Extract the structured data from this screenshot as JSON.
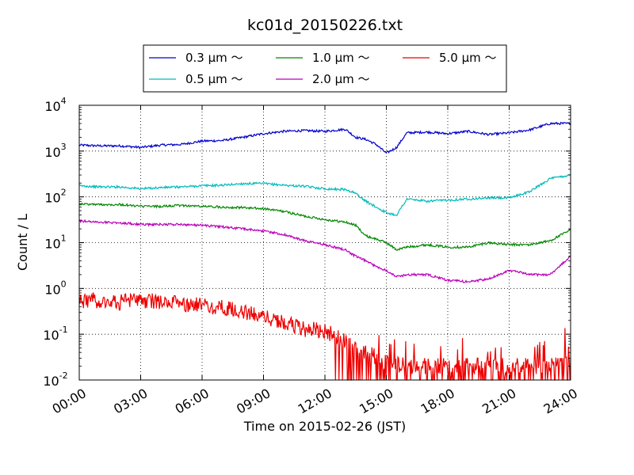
{
  "chart_data": {
    "type": "line",
    "title": "kc01d_20150226.txt",
    "xlabel": "Time on 2015-02-26 (JST)",
    "ylabel": "Count / L",
    "yscale": "log",
    "ylim": [
      0.01,
      10000
    ],
    "xlim": [
      "00:00",
      "24:00"
    ],
    "grid": true,
    "legend_position": "top-center",
    "x_ticks": [
      "00:00",
      "03:00",
      "06:00",
      "09:00",
      "12:00",
      "15:00",
      "18:00",
      "21:00",
      "24:00"
    ],
    "y_ticks": [
      {
        "base": "10",
        "exp": "-2"
      },
      {
        "base": "10",
        "exp": "-1"
      },
      {
        "base": "10",
        "exp": "0"
      },
      {
        "base": "10",
        "exp": "1"
      },
      {
        "base": "10",
        "exp": "2"
      },
      {
        "base": "10",
        "exp": "3"
      },
      {
        "base": "10",
        "exp": "4"
      }
    ],
    "series": [
      {
        "name": "0.3 μm ～",
        "color": "#0000cc",
        "x": [
          "00:00",
          "01:00",
          "02:00",
          "03:00",
          "04:00",
          "05:00",
          "06:00",
          "07:00",
          "08:00",
          "09:00",
          "10:00",
          "11:00",
          "12:00",
          "13:00",
          "13:30",
          "14:00",
          "14:30",
          "15:00",
          "15:30",
          "16:00",
          "17:00",
          "18:00",
          "19:00",
          "20:00",
          "21:00",
          "22:00",
          "23:00",
          "24:00"
        ],
        "y": [
          1350,
          1300,
          1300,
          1200,
          1350,
          1400,
          1650,
          1700,
          2000,
          2400,
          2700,
          2800,
          2700,
          3000,
          2000,
          1800,
          1400,
          900,
          1200,
          2500,
          2600,
          2400,
          2700,
          2300,
          2500,
          2900,
          4000,
          4000
        ]
      },
      {
        "name": "0.5 μm ～",
        "color": "#00bbbb",
        "x": [
          "00:00",
          "01:00",
          "02:00",
          "03:00",
          "04:00",
          "05:00",
          "06:00",
          "07:00",
          "08:00",
          "09:00",
          "10:00",
          "11:00",
          "12:00",
          "13:00",
          "13:30",
          "14:00",
          "14:30",
          "15:00",
          "15:30",
          "16:00",
          "17:00",
          "18:00",
          "19:00",
          "20:00",
          "21:00",
          "22:00",
          "23:00",
          "24:00"
        ],
        "y": [
          175,
          165,
          165,
          150,
          160,
          165,
          175,
          180,
          195,
          195,
          180,
          170,
          150,
          145,
          120,
          80,
          60,
          45,
          40,
          90,
          80,
          85,
          90,
          95,
          95,
          130,
          250,
          300
        ]
      },
      {
        "name": "1.0 μm ～",
        "color": "#008800",
        "x": [
          "00:00",
          "01:00",
          "02:00",
          "03:00",
          "04:00",
          "05:00",
          "06:00",
          "07:00",
          "08:00",
          "09:00",
          "10:00",
          "11:00",
          "12:00",
          "13:00",
          "13:30",
          "14:00",
          "14:30",
          "15:00",
          "15:30",
          "16:00",
          "17:00",
          "18:00",
          "19:00",
          "20:00",
          "21:00",
          "22:00",
          "23:00",
          "24:00"
        ],
        "y": [
          70,
          68,
          68,
          62,
          62,
          65,
          62,
          60,
          58,
          55,
          48,
          38,
          32,
          28,
          24,
          14,
          12,
          10,
          7,
          8,
          9,
          8,
          8,
          10,
          9,
          9,
          11,
          19
        ]
      },
      {
        "name": "2.0 μm ～",
        "color": "#bb00bb",
        "x": [
          "00:00",
          "01:00",
          "02:00",
          "03:00",
          "04:00",
          "05:00",
          "06:00",
          "07:00",
          "08:00",
          "09:00",
          "10:00",
          "11:00",
          "12:00",
          "13:00",
          "13:30",
          "14:00",
          "14:30",
          "15:00",
          "15:30",
          "16:00",
          "17:00",
          "18:00",
          "19:00",
          "20:00",
          "21:00",
          "22:00",
          "23:00",
          "24:00"
        ],
        "y": [
          30,
          28,
          27,
          25,
          25,
          25,
          24,
          22,
          20,
          18,
          15,
          11,
          9,
          7,
          5,
          4,
          3,
          2.5,
          1.8,
          2,
          2,
          1.5,
          1.4,
          1.6,
          2.5,
          2,
          2,
          5
        ]
      },
      {
        "name": "5.0 μm ～",
        "color": "#ee0000",
        "x": [
          "00:00",
          "01:00",
          "02:00",
          "03:00",
          "04:00",
          "05:00",
          "06:00",
          "07:00",
          "08:00",
          "09:00",
          "10:00",
          "11:00",
          "12:00",
          "13:00",
          "14:00",
          "15:00",
          "16:00",
          "17:00",
          "18:00",
          "19:00",
          "20:00",
          "21:00",
          "22:00",
          "23:00",
          "24:00"
        ],
        "y": [
          0.55,
          0.55,
          0.5,
          0.55,
          0.5,
          0.45,
          0.42,
          0.38,
          0.3,
          0.25,
          0.18,
          0.13,
          0.12,
          0.07,
          0.04,
          0.025,
          0.02,
          0.02,
          0.02,
          0.02,
          0.02,
          0.02,
          0.02,
          0.02,
          0.04
        ]
      }
    ]
  }
}
